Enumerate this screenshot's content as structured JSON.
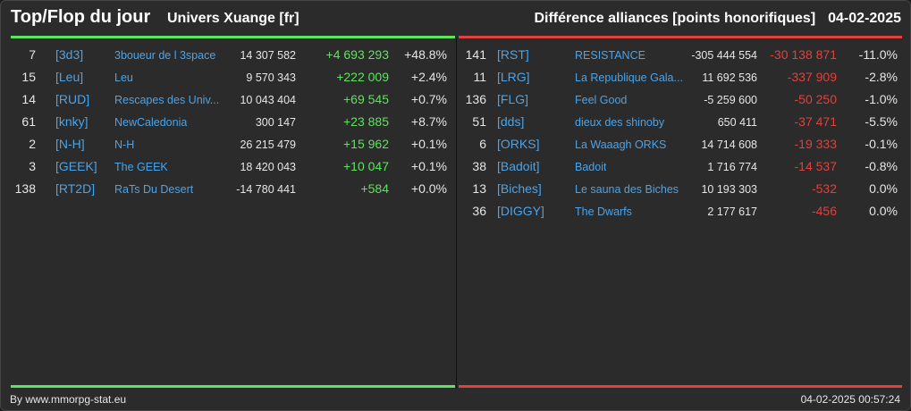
{
  "header": {
    "title": "Top/Flop du jour",
    "universe": "Univers Xuange [fr]",
    "subtitle": "Différence alliances [points honorifiques]",
    "date": "04-02-2025"
  },
  "colors": {
    "positive": "#5de35d",
    "negative": "#e0413d",
    "tag": "#4ba3e8",
    "background": "#2b2b2b"
  },
  "top": [
    {
      "rank": "7",
      "tag": "[3d3]",
      "name": "3boueur de l 3space",
      "points": "14 307 582",
      "diff": "+4 693 293",
      "pct": "+48.8%"
    },
    {
      "rank": "15",
      "tag": "[Leu]",
      "name": "Leu",
      "points": "9 570 343",
      "diff": "+222 009",
      "pct": "+2.4%"
    },
    {
      "rank": "14",
      "tag": "[RUD]",
      "name": "Rescapes des Univ...",
      "points": "10 043 404",
      "diff": "+69 545",
      "pct": "+0.7%"
    },
    {
      "rank": "61",
      "tag": "[knky]",
      "name": "NewCaledonia",
      "points": "300 147",
      "diff": "+23 885",
      "pct": "+8.7%"
    },
    {
      "rank": "2",
      "tag": "[N-H]",
      "name": "N-H",
      "points": "26 215 479",
      "diff": "+15 962",
      "pct": "+0.1%"
    },
    {
      "rank": "3",
      "tag": "[GEEK]",
      "name": "The GEEK",
      "points": "18 420 043",
      "diff": "+10 047",
      "pct": "+0.1%"
    },
    {
      "rank": "138",
      "tag": "[RT2D]",
      "name": "RaTs Du Desert",
      "points": "-14 780 441",
      "diff": "+584",
      "pct": "+0.0%"
    }
  ],
  "flop": [
    {
      "rank": "141",
      "tag": "[RST]",
      "name": "RESISTANCE",
      "points": "-305 444 554",
      "diff": "-30 138 871",
      "pct": "-11.0%"
    },
    {
      "rank": "11",
      "tag": "[LRG]",
      "name": "La Republique Gala...",
      "points": "11 692 536",
      "diff": "-337 909",
      "pct": "-2.8%"
    },
    {
      "rank": "136",
      "tag": "[FLG]",
      "name": "Feel Good",
      "points": "-5 259 600",
      "diff": "-50 250",
      "pct": "-1.0%"
    },
    {
      "rank": "51",
      "tag": "[dds]",
      "name": "dieux des shinoby",
      "points": "650 411",
      "diff": "-37 471",
      "pct": "-5.5%"
    },
    {
      "rank": "6",
      "tag": "[ORKS]",
      "name": "La Waaagh ORKS",
      "points": "14 714 608",
      "diff": "-19 333",
      "pct": "-0.1%"
    },
    {
      "rank": "38",
      "tag": "[Badoit]",
      "name": "Badoit",
      "points": "1 716 774",
      "diff": "-14 537",
      "pct": "-0.8%"
    },
    {
      "rank": "13",
      "tag": "[Biches]",
      "name": "Le sauna des Biches",
      "points": "10 193 303",
      "diff": "-532",
      "pct": "0.0%"
    },
    {
      "rank": "36",
      "tag": "[DIGGY]",
      "name": "The Dwarfs",
      "points": "2 177 617",
      "diff": "-456",
      "pct": "0.0%"
    }
  ],
  "footer": {
    "source": "By www.mmorpg-stat.eu",
    "timestamp": "04-02-2025 00:57:24"
  }
}
